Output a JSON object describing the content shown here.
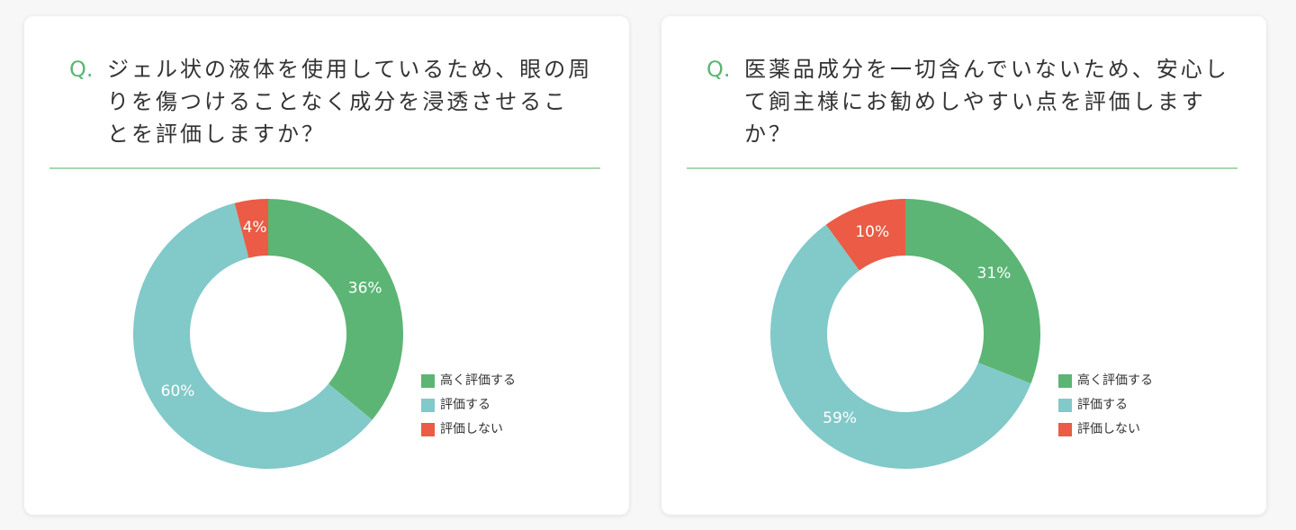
{
  "colors": {
    "high": "#5cb574",
    "mid": "#82c9c9",
    "low": "#eb5b46",
    "accent": "#5cb574"
  },
  "legend_labels": [
    "高く評価する",
    "評価する",
    "評価しない"
  ],
  "cards": [
    {
      "q_mark": "Q.",
      "question_lines": [
        "ジェル状の液体を使用しているため、眼の周",
        "りを傷つけることなく成分を浸透させるこ",
        "とを評価しますか？"
      ]
    },
    {
      "q_mark": "Q.",
      "question_lines": [
        "医薬品成分を一切含んでいないため、安心し",
        "て飼主様にお勧めしやすい点を評価します",
        "か？"
      ]
    }
  ],
  "chart_data": [
    {
      "type": "pie",
      "categories": [
        "高く評価する",
        "評価する",
        "評価しない"
      ],
      "values": [
        36,
        60,
        4
      ],
      "labels": [
        "36%",
        "60%",
        "4%"
      ],
      "legend": "right"
    },
    {
      "type": "pie",
      "categories": [
        "高く評価する",
        "評価する",
        "評価しない"
      ],
      "values": [
        31,
        59,
        10
      ],
      "labels": [
        "31%",
        "59%",
        "10%"
      ],
      "legend": "right"
    }
  ]
}
